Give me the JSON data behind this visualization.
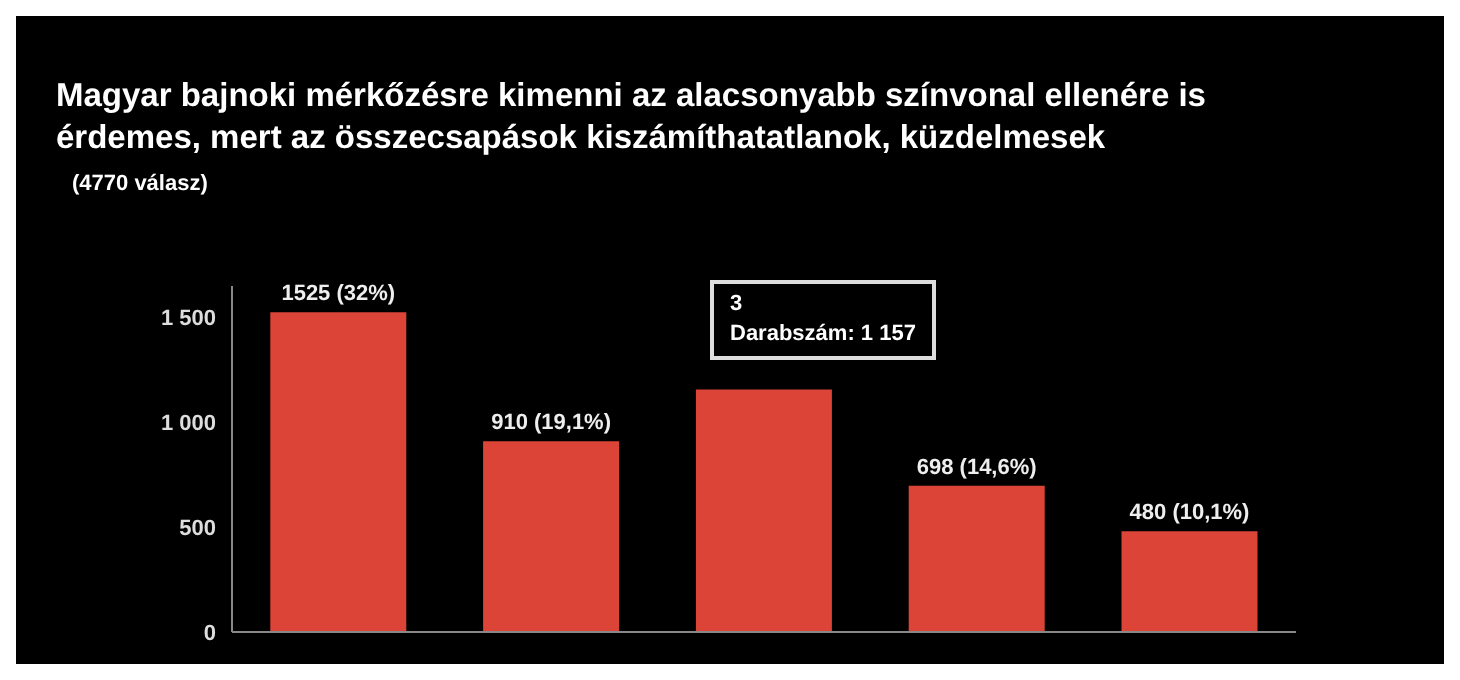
{
  "chart_data": {
    "type": "bar",
    "title": "Magyar bajnoki mérkőzésre kimenni az alacsonyabb színvonal ellenére is érdemes, mert az összecsapások kiszámíthatatlanok, küzdelmesek",
    "subtitle": "(4770 válasz)",
    "categories": [
      null,
      null,
      null,
      null,
      null
    ],
    "values": [
      1525,
      910,
      1157,
      698,
      480
    ],
    "value_labels": [
      "1525 (32%)",
      "910 (19,1%)",
      null,
      "698 (14,6%)",
      "480 (10,1%)"
    ],
    "color": "#db4437",
    "ylim": [
      0,
      1650
    ],
    "yticks": [
      0,
      500,
      {
        "value": 1000,
        "label": "1 000"
      },
      {
        "value": 1500,
        "label": "1 500"
      }
    ],
    "tick_labels": "y",
    "grid": false,
    "annotations": [
      "3",
      "Darabszám: 1 157"
    ]
  }
}
